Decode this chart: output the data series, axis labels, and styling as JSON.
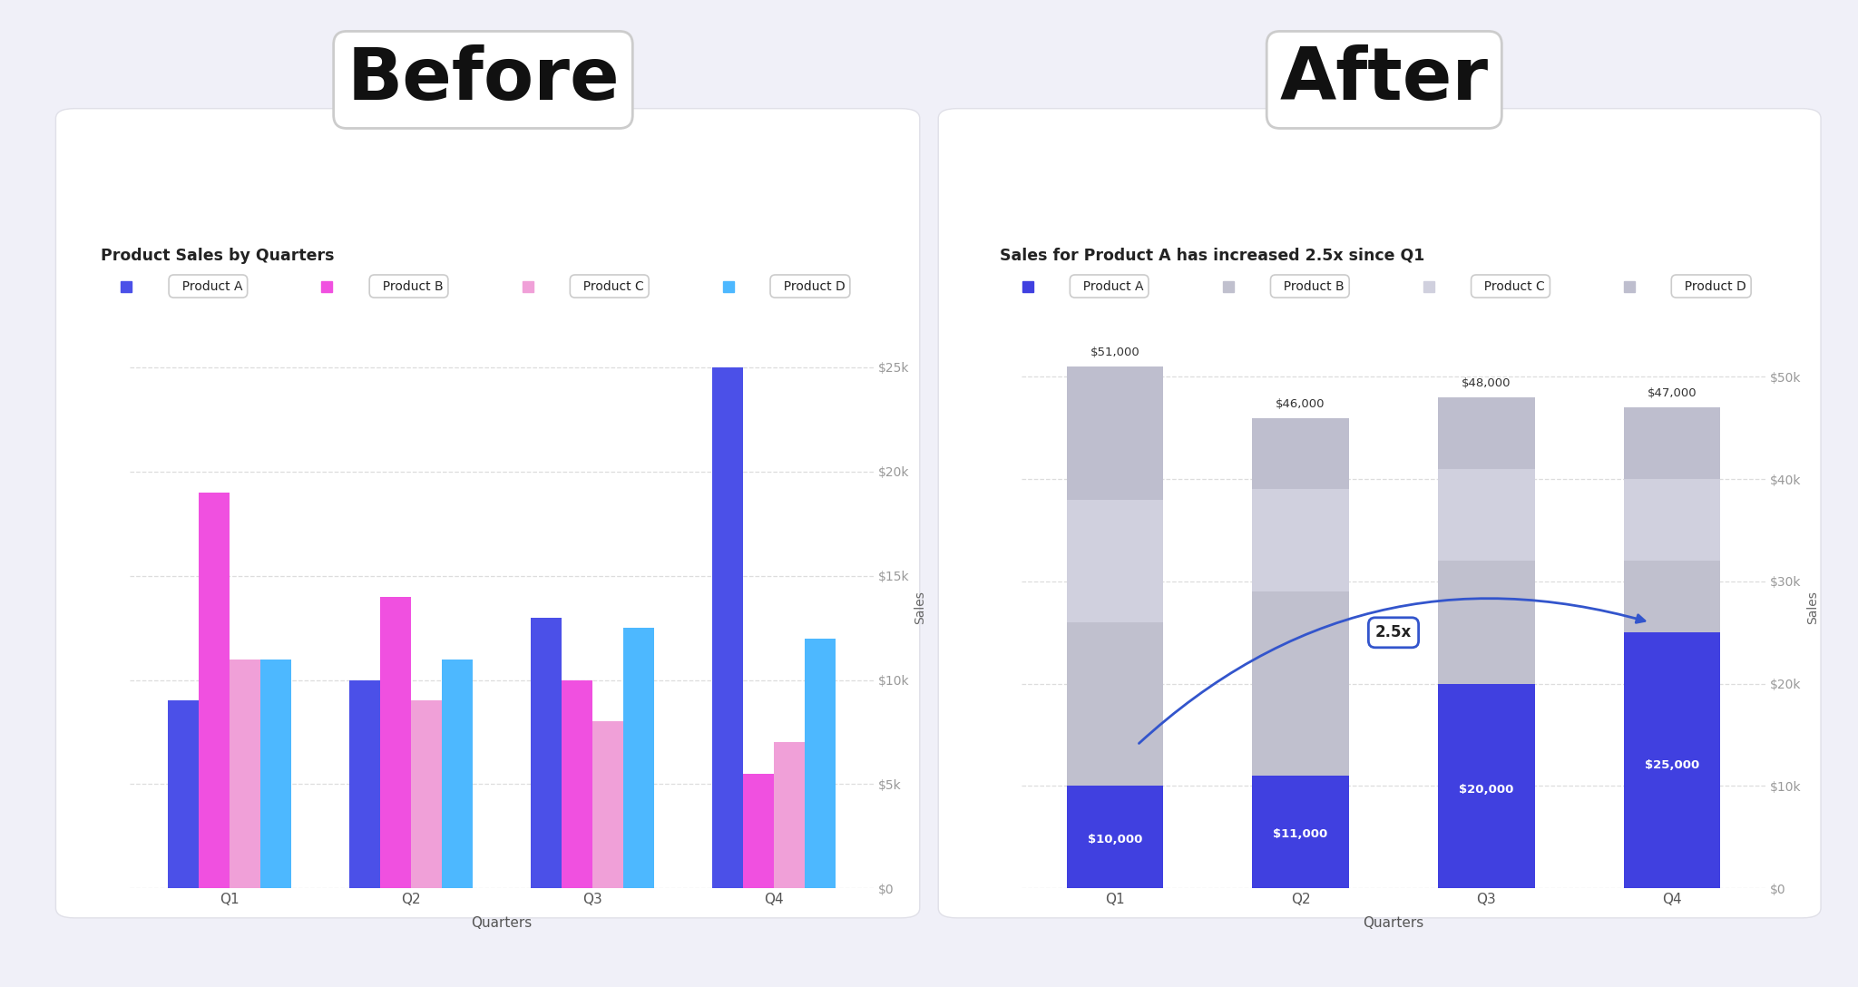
{
  "before_title": "Product Sales by Quarters",
  "after_title": "Sales for Product A has increased 2.5x since Q1",
  "xlabel": "Quarters",
  "ylabel": "Sales",
  "quarters": [
    "Q1",
    "Q2",
    "Q3",
    "Q4"
  ],
  "before_data": {
    "Product A": [
      9000,
      10000,
      13000,
      25000
    ],
    "Product B": [
      19000,
      14000,
      10000,
      5500
    ],
    "Product C": [
      11000,
      9000,
      8000,
      7000
    ],
    "Product D": [
      11000,
      11000,
      12500,
      12000
    ]
  },
  "before_colors": {
    "Product A": "#4B50E8",
    "Product B": "#F050E0",
    "Product C": "#F0A0D8",
    "Product D": "#4DB8FF"
  },
  "after_data": {
    "Product A": [
      10000,
      11000,
      20000,
      25000
    ],
    "Product B": [
      16000,
      18000,
      12000,
      7000
    ],
    "Product C": [
      12000,
      10000,
      9000,
      8000
    ],
    "Product D": [
      13000,
      7000,
      7000,
      7000
    ]
  },
  "after_colors": {
    "Product A": "#4040E0",
    "Product B": "#C0C0CE",
    "Product C": "#D0D0DE",
    "Product D": "#BEBECE"
  },
  "after_totals": [
    "$51,000",
    "$46,000",
    "$48,000",
    "$47,000"
  ],
  "after_totals_vals": [
    51000,
    46000,
    48000,
    47000
  ],
  "after_product_a_labels": [
    "$10,000",
    "$11,000",
    "$20,000",
    "$25,000"
  ],
  "background_color": "#F0F0F8",
  "panel_color": "#FFFFFF",
  "before_ylim": [
    0,
    27000
  ],
  "after_ylim": [
    0,
    55000
  ],
  "before_yticks": [
    0,
    5000,
    10000,
    15000,
    20000,
    25000
  ],
  "after_yticks": [
    0,
    10000,
    20000,
    30000,
    40000,
    50000
  ]
}
